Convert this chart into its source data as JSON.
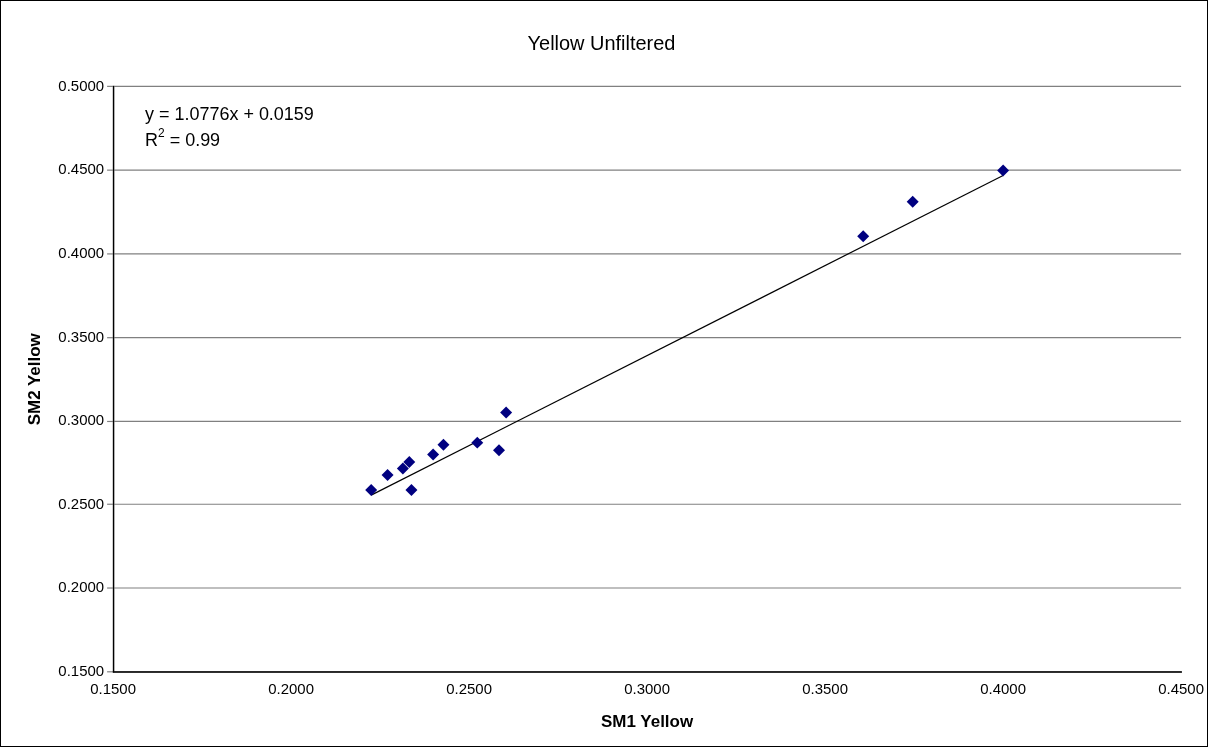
{
  "chart_data": {
    "type": "scatter",
    "title": "Yellow Unfiltered",
    "xlabel": "SM1 Yellow",
    "ylabel": "SM2 Yellow",
    "annotations": [
      "y = 1.0776x + 0.0159",
      "R$^{2}$ = 0.99"
    ],
    "series": [
      {
        "color": "#000080",
        "marker": "diamond",
        "x": [
          0.2225,
          0.2271,
          0.2314,
          0.2332,
          0.2338,
          0.2399,
          0.2428,
          0.2523,
          0.2584,
          0.2604,
          0.3607,
          0.3746,
          0.4
        ],
        "values": [
          0.2588,
          0.2678,
          0.2716,
          0.2755,
          0.2588,
          0.28,
          0.2858,
          0.2871,
          0.2826,
          0.3051,
          0.4106,
          0.4312,
          0.4499
        ]
      },
      {
        "type": "line",
        "color": "#000000",
        "marker": "none",
        "x": [
          0.2225,
          0.4
        ],
        "values": [
          0.2557,
          0.4469
        ]
      }
    ],
    "xlim": [
      0.15,
      0.45
    ],
    "xticks": [
      {
        "value": 0.15,
        "label": "0.1500"
      },
      {
        "value": 0.2,
        "label": "0.2000"
      },
      {
        "value": 0.25,
        "label": "0.2500"
      },
      {
        "value": 0.3,
        "label": "0.3000"
      },
      {
        "value": 0.35,
        "label": "0.3500"
      },
      {
        "value": 0.4,
        "label": "0.4000"
      },
      {
        "value": 0.45,
        "label": "0.4500"
      }
    ],
    "ylim": [
      0.15,
      0.5
    ],
    "yticks": [
      {
        "value": 0.15,
        "label": "0.1500"
      },
      {
        "value": 0.2,
        "label": "0.2000"
      },
      {
        "value": 0.25,
        "label": "0.2500"
      },
      {
        "value": 0.3,
        "label": "0.3000"
      },
      {
        "value": 0.35,
        "label": "0.3500"
      },
      {
        "value": 0.4,
        "label": "0.4000"
      },
      {
        "value": 0.45,
        "label": "0.4500"
      },
      {
        "value": 0.5,
        "label": "0.5000"
      }
    ],
    "grid": "y",
    "legend": false
  }
}
